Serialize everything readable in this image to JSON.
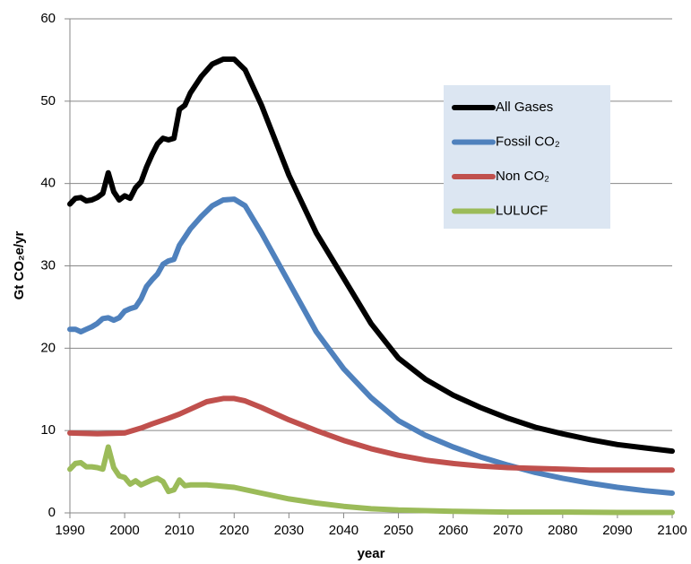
{
  "chart_data": {
    "type": "line",
    "xlabel": "year",
    "ylabel": "Gt CO₂e/yr",
    "xlim": [
      1990,
      2100
    ],
    "xticks": [
      1990,
      2000,
      2010,
      2020,
      2030,
      2040,
      2050,
      2060,
      2070,
      2080,
      2090,
      2100
    ],
    "ylim": [
      0,
      60
    ],
    "yticks": [
      0,
      10,
      20,
      30,
      40,
      50,
      60
    ],
    "grid": true,
    "legend": "upper right",
    "series": [
      {
        "name": "All Gases",
        "color": "#000000",
        "x": [
          1990,
          1991,
          1992,
          1993,
          1994,
          1995,
          1996,
          1997,
          1998,
          1999,
          2000,
          2001,
          2002,
          2003,
          2004,
          2005,
          2006,
          2007,
          2008,
          2009,
          2010,
          2011,
          2012,
          2014,
          2016,
          2018,
          2020,
          2022,
          2025,
          2030,
          2035,
          2040,
          2045,
          2050,
          2055,
          2060,
          2065,
          2070,
          2075,
          2080,
          2085,
          2090,
          2095,
          2100
        ],
        "values": [
          37.5,
          38.2,
          38.3,
          37.9,
          38.0,
          38.3,
          38.8,
          41.3,
          39.0,
          38.0,
          38.5,
          38.2,
          39.5,
          40.2,
          42.0,
          43.5,
          44.8,
          45.5,
          45.3,
          45.5,
          49.0,
          49.5,
          51.0,
          53.0,
          54.5,
          55.1,
          55.1,
          53.8,
          49.5,
          41.0,
          34.0,
          28.5,
          23.0,
          18.8,
          16.2,
          14.3,
          12.8,
          11.5,
          10.4,
          9.6,
          8.9,
          8.3,
          7.9,
          7.5
        ]
      },
      {
        "name": "Fossil CO₂",
        "color": "#4f81bd",
        "x": [
          1990,
          1991,
          1992,
          1993,
          1994,
          1995,
          1996,
          1997,
          1998,
          1999,
          2000,
          2001,
          2002,
          2003,
          2004,
          2005,
          2006,
          2007,
          2008,
          2009,
          2010,
          2011,
          2012,
          2014,
          2016,
          2018,
          2020,
          2022,
          2025,
          2030,
          2035,
          2040,
          2045,
          2050,
          2055,
          2060,
          2065,
          2070,
          2075,
          2080,
          2085,
          2090,
          2095,
          2100
        ],
        "values": [
          22.3,
          22.3,
          22.0,
          22.3,
          22.6,
          23.0,
          23.6,
          23.7,
          23.4,
          23.7,
          24.5,
          24.8,
          25.0,
          26.0,
          27.5,
          28.3,
          29.0,
          30.2,
          30.6,
          30.8,
          32.5,
          33.5,
          34.5,
          36.0,
          37.3,
          38.0,
          38.1,
          37.3,
          34.0,
          28.0,
          22.0,
          17.5,
          14.0,
          11.2,
          9.4,
          8.0,
          6.8,
          5.8,
          4.9,
          4.2,
          3.6,
          3.1,
          2.7,
          2.4
        ]
      },
      {
        "name": "Non CO₂",
        "color": "#c0504d",
        "x": [
          1990,
          1995,
          2000,
          2003,
          2005,
          2008,
          2010,
          2012,
          2015,
          2018,
          2020,
          2022,
          2025,
          2030,
          2035,
          2040,
          2045,
          2050,
          2055,
          2060,
          2065,
          2070,
          2075,
          2080,
          2085,
          2090,
          2095,
          2100
        ],
        "values": [
          9.7,
          9.6,
          9.7,
          10.3,
          10.8,
          11.5,
          12.0,
          12.6,
          13.5,
          13.9,
          13.9,
          13.6,
          12.8,
          11.3,
          10.0,
          8.8,
          7.8,
          7.0,
          6.4,
          6.0,
          5.7,
          5.5,
          5.4,
          5.3,
          5.2,
          5.2,
          5.2,
          5.2
        ]
      },
      {
        "name": "LULUCF",
        "color": "#9bbb59",
        "x": [
          1990,
          1991,
          1992,
          1993,
          1994,
          1995,
          1996,
          1997,
          1998,
          1999,
          2000,
          2001,
          2002,
          2003,
          2004,
          2005,
          2006,
          2007,
          2008,
          2009,
          2010,
          2011,
          2012,
          2015,
          2020,
          2025,
          2030,
          2035,
          2040,
          2045,
          2050,
          2060,
          2070,
          2080,
          2090,
          2100
        ],
        "values": [
          5.3,
          6.0,
          6.1,
          5.6,
          5.6,
          5.5,
          5.3,
          8.0,
          5.5,
          4.5,
          4.3,
          3.5,
          3.9,
          3.4,
          3.7,
          4.0,
          4.2,
          3.8,
          2.6,
          2.8,
          4.0,
          3.3,
          3.4,
          3.4,
          3.1,
          2.4,
          1.7,
          1.2,
          0.8,
          0.5,
          0.35,
          0.2,
          0.1,
          0.1,
          0.05,
          0.05
        ]
      }
    ]
  }
}
